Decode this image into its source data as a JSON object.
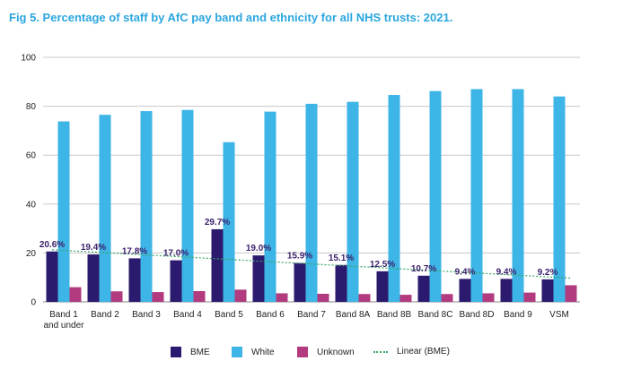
{
  "title": "Fig 5. Percentage of staff by AfC pay band and ethnicity for all NHS trusts: 2021.",
  "chart_data": {
    "type": "bar",
    "title": "Fig 5. Percentage of staff by AfC pay band and ethnicity for all NHS trusts: 2021.",
    "categories": [
      [
        "Band 1",
        "and under"
      ],
      [
        "Band 2"
      ],
      [
        "Band 3"
      ],
      [
        "Band 4"
      ],
      [
        "Band 5"
      ],
      [
        "Band 6"
      ],
      [
        "Band 7"
      ],
      [
        "Band 8A"
      ],
      [
        "Band 8B"
      ],
      [
        "Band 8C"
      ],
      [
        "Band 8D"
      ],
      [
        "Band 9"
      ],
      [
        "VSM"
      ]
    ],
    "series": [
      {
        "name": "BME",
        "color": "#2c1a6e",
        "values": [
          20.6,
          19.4,
          17.8,
          17.0,
          29.7,
          19.0,
          15.9,
          15.1,
          12.5,
          10.7,
          9.4,
          9.4,
          9.2
        ],
        "labels": [
          "20.6%",
          "19.4%",
          "17.8%",
          "17.0%",
          "29.7%",
          "19.0%",
          "15.9%",
          "15.1%",
          "12.5%",
          "10.7%",
          "9.4%",
          "9.4%",
          "9.2%"
        ]
      },
      {
        "name": "White",
        "color": "#3db5e6",
        "values": [
          73.8,
          76.5,
          78.0,
          78.5,
          65.3,
          77.8,
          81.0,
          81.8,
          84.6,
          86.2,
          87.0,
          87.0,
          84.0
        ]
      },
      {
        "name": "Unknown",
        "color": "#b23b7f",
        "values": [
          6.0,
          4.3,
          4.0,
          4.4,
          5.0,
          3.5,
          3.3,
          3.2,
          2.9,
          3.2,
          3.5,
          3.8,
          6.8
        ]
      }
    ],
    "trendline": {
      "name": "Linear (BME)",
      "color": "#3aa66a",
      "start": 21.3,
      "end": 9.7
    },
    "xlabel": "",
    "ylabel": "",
    "ylim": [
      0,
      100
    ],
    "yticks": [
      0,
      20,
      40,
      60,
      80,
      100
    ],
    "grid": true,
    "legend_position": "bottom"
  },
  "legend": [
    {
      "label": "BME",
      "color": "#2c1a6e"
    },
    {
      "label": "White",
      "color": "#3db5e6"
    },
    {
      "label": "Unknown",
      "color": "#b23b7f"
    },
    {
      "label": "Linear (BME)",
      "color": "#3aa66a"
    }
  ]
}
